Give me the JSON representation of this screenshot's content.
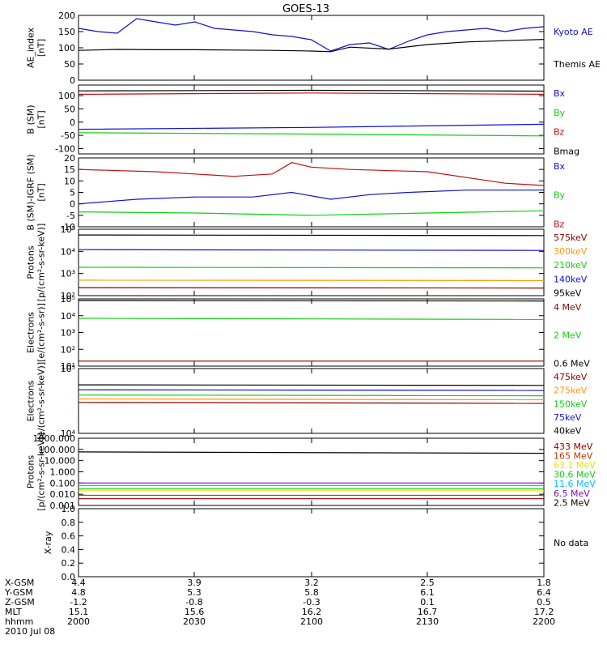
{
  "title": "GOES-13",
  "date": "2010 Jul 08",
  "time_axis": {
    "label": "hhmm",
    "ticks": [
      "2000",
      "2030",
      "2100",
      "2130",
      "2200"
    ],
    "rows": [
      {
        "name": "X-GSM",
        "values": [
          "4.4",
          "3.9",
          "3.2",
          "2.5",
          "1.8"
        ]
      },
      {
        "name": "Y-GSM",
        "values": [
          "4.8",
          "5.3",
          "5.8",
          "6.1",
          "6.4"
        ]
      },
      {
        "name": "Z-GSM",
        "values": [
          "-1.2",
          "-0.8",
          "-0.3",
          "0.1",
          "0.5"
        ]
      },
      {
        "name": "MLT",
        "values": [
          "15.1",
          "15.6",
          "16.2",
          "16.7",
          "17.2"
        ]
      }
    ]
  },
  "colors": {
    "black": "#000000",
    "blue": "#1010d0",
    "green": "#10d010",
    "red": "#c01010",
    "darkred": "#8b0000",
    "orange": "#ff9900",
    "yellow": "#e6e600",
    "cyan": "#00bfff",
    "purple": "#7a0da8",
    "brown": "#b04000"
  },
  "chart_data": [
    {
      "type": "line",
      "panel": "ae",
      "ylabel": "AE_index\n[nT]",
      "ylim": [
        0,
        200
      ],
      "ticks": [
        "0",
        "50",
        "100",
        "150",
        "200"
      ],
      "tick_values": [
        0,
        50,
        100,
        150,
        200
      ],
      "series": [
        {
          "name": "Kyoto AE",
          "color": "#1010d0",
          "x": [
            0,
            5,
            10,
            15,
            20,
            25,
            30,
            35,
            40,
            45,
            50,
            55,
            60,
            65,
            70,
            75,
            80,
            85,
            90,
            95,
            100,
            105,
            110,
            115,
            120
          ],
          "y": [
            160,
            150,
            145,
            190,
            180,
            170,
            180,
            160,
            155,
            150,
            140,
            135,
            125,
            90,
            110,
            115,
            95,
            120,
            140,
            150,
            155,
            160,
            150,
            160,
            165
          ]
        },
        {
          "name": "Themis AE",
          "color": "#000000",
          "x": [
            0,
            10,
            20,
            30,
            40,
            50,
            60,
            65,
            70,
            80,
            90,
            100,
            110,
            120
          ],
          "y": [
            92,
            95,
            94,
            94,
            93,
            92,
            90,
            88,
            102,
            96,
            110,
            118,
            122,
            126
          ]
        }
      ]
    },
    {
      "type": "line",
      "panel": "b",
      "ylabel": "B (SM)\n[nT]",
      "ylim": [
        -120,
        140
      ],
      "ticks": [
        "-100",
        "-50",
        "0",
        "50",
        "100"
      ],
      "tick_values": [
        -100,
        -50,
        0,
        50,
        100
      ],
      "series": [
        {
          "name": "Bx",
          "color": "#1010d0",
          "x": [
            0,
            60,
            120
          ],
          "y": [
            -27,
            -20,
            -8
          ]
        },
        {
          "name": "By",
          "color": "#10d010",
          "x": [
            0,
            60,
            120
          ],
          "y": [
            -40,
            -45,
            -52
          ]
        },
        {
          "name": "Bz",
          "color": "#c01010",
          "x": [
            0,
            60,
            120
          ],
          "y": [
            105,
            110,
            105
          ]
        },
        {
          "name": "Bmag",
          "color": "#000000",
          "x": [
            0,
            60,
            120
          ],
          "y": [
            118,
            120,
            117
          ]
        }
      ]
    },
    {
      "type": "line",
      "panel": "db",
      "ylabel": "B (SM)-IGRF (SM)\n[nT]",
      "ylim": [
        -10,
        20
      ],
      "ticks": [
        "-10",
        "-5",
        "0",
        "5",
        "10",
        "15",
        "20"
      ],
      "tick_values": [
        -10,
        -5,
        0,
        5,
        10,
        15,
        20
      ],
      "series": [
        {
          "name": "Bx",
          "color": "#1010d0",
          "x": [
            0,
            15,
            30,
            45,
            55,
            65,
            75,
            85,
            100,
            120
          ],
          "y": [
            0,
            2,
            3,
            3,
            5,
            2,
            4,
            5,
            6,
            6
          ]
        },
        {
          "name": "By",
          "color": "#10d010",
          "x": [
            0,
            30,
            60,
            90,
            120
          ],
          "y": [
            -3.5,
            -4,
            -5,
            -4,
            -3
          ]
        },
        {
          "name": "Bz",
          "color": "#c01010",
          "x": [
            0,
            20,
            40,
            50,
            55,
            60,
            70,
            90,
            110,
            120
          ],
          "y": [
            15,
            14,
            12,
            13,
            18,
            16,
            15,
            14,
            9,
            8
          ]
        }
      ]
    },
    {
      "type": "line",
      "panel": "protons",
      "log": true,
      "ylabel": "Protons\n[p/(cm²-s-sr-keV)]",
      "ylim": [
        100,
        100000
      ],
      "ticks": [
        "10²",
        "10³",
        "10⁴",
        "10⁵"
      ],
      "tick_values": [
        100,
        1000,
        10000,
        100000
      ],
      "series": [
        {
          "name": "575keV",
          "color": "#8b0000",
          "x": [
            0,
            120
          ],
          "y": [
            230,
            220
          ]
        },
        {
          "name": "300keV",
          "color": "#ff9900",
          "x": [
            0,
            120
          ],
          "y": [
            500,
            480
          ]
        },
        {
          "name": "210keV",
          "color": "#10d010",
          "x": [
            0,
            120
          ],
          "y": [
            1900,
            1800
          ]
        },
        {
          "name": "140keV",
          "color": "#1010d0",
          "x": [
            0,
            120
          ],
          "y": [
            12000,
            11000
          ]
        },
        {
          "name": "95keV",
          "color": "#000000",
          "x": [
            0,
            120
          ],
          "y": [
            55000,
            52000
          ]
        }
      ]
    },
    {
      "type": "line",
      "panel": "electrons_mev",
      "log": true,
      "ylabel": "Electrons\n[e/(cm²-s-sr)]",
      "ylim": [
        10,
        100000
      ],
      "ticks": [
        "10¹",
        "10²",
        "10³",
        "10⁴",
        "10⁵"
      ],
      "tick_values": [
        10,
        100,
        1000,
        10000,
        100000
      ],
      "series": [
        {
          "name": "4 MeV",
          "color": "#8b0000",
          "x": [
            0,
            120
          ],
          "y": [
            20,
            20
          ]
        },
        {
          "name": "2 MeV",
          "color": "#10d010",
          "x": [
            0,
            120
          ],
          "y": [
            7000,
            6000
          ]
        },
        {
          "name": "0.6 MeV",
          "color": "#000000",
          "x": [
            0,
            120
          ],
          "y": [
            80000,
            75000
          ]
        }
      ]
    },
    {
      "type": "line",
      "panel": "electrons_kev",
      "log": true,
      "ylabel": "Electrons\n[e/(cm²-s-sr-keV)]",
      "ylim": [
        10000,
        100000
      ],
      "ticks": [
        "10⁴",
        "10⁵"
      ],
      "tick_values": [
        10000,
        100000
      ],
      "series": [
        {
          "name": "475keV",
          "color": "#8b0000",
          "x": [
            0,
            120
          ],
          "y": [
            30000,
            29000
          ]
        },
        {
          "name": "275keV",
          "color": "#ff9900",
          "x": [
            0,
            120
          ],
          "y": [
            34000,
            33000
          ]
        },
        {
          "name": "150keV",
          "color": "#10d010",
          "x": [
            0,
            120
          ],
          "y": [
            39000,
            38000
          ]
        },
        {
          "name": "75keV",
          "color": "#1010d0",
          "x": [
            0,
            120
          ],
          "y": [
            47000,
            46000
          ]
        },
        {
          "name": "40keV",
          "color": "#000000",
          "x": [
            0,
            120
          ],
          "y": [
            56000,
            55000
          ]
        }
      ]
    },
    {
      "type": "line",
      "panel": "protons_mev",
      "log": true,
      "ylabel": "Protons\n[p/(cm²-s-sr-keV)]",
      "ylim": [
        0.001,
        1000
      ],
      "ticks": [
        "0.001",
        "0.010",
        "0.100",
        "1.000",
        "10.000",
        "100.000",
        "1000.000"
      ],
      "tick_values": [
        0.001,
        0.01,
        0.1,
        1,
        10,
        100,
        1000
      ],
      "series": [
        {
          "name": "433 MeV",
          "color": "#8b0000",
          "x": [
            0,
            120
          ],
          "y": [
            0.004,
            0.004
          ]
        },
        {
          "name": "165 MeV",
          "color": "#b04000",
          "x": [
            0,
            120
          ],
          "y": [
            0.008,
            0.008
          ]
        },
        {
          "name": "63.1 MeV",
          "color": "#e6e600",
          "x": [
            0,
            120
          ],
          "y": [
            0.02,
            0.02
          ]
        },
        {
          "name": "30.6 MeV",
          "color": "#10d010",
          "x": [
            0,
            120
          ],
          "y": [
            0.03,
            0.03
          ]
        },
        {
          "name": "11.6 MeV",
          "color": "#00bfff",
          "x": [
            0,
            120
          ],
          "y": [
            0.06,
            0.06
          ]
        },
        {
          "name": "6.5 MeV",
          "color": "#7a0da8",
          "x": [
            0,
            120
          ],
          "y": [
            0.1,
            0.1
          ]
        },
        {
          "name": "2.5 MeV",
          "color": "#000000",
          "x": [
            0,
            120
          ],
          "y": [
            60,
            45
          ]
        }
      ]
    },
    {
      "type": "line",
      "panel": "xray",
      "ylabel": "X-ray",
      "ylim": [
        0,
        1
      ],
      "ticks": [
        "0.0",
        "0.2",
        "0.4",
        "0.6",
        "0.8",
        "1.0"
      ],
      "tick_values": [
        0,
        0.2,
        0.4,
        0.6,
        0.8,
        1.0
      ],
      "series": [],
      "note": "No data"
    }
  ]
}
